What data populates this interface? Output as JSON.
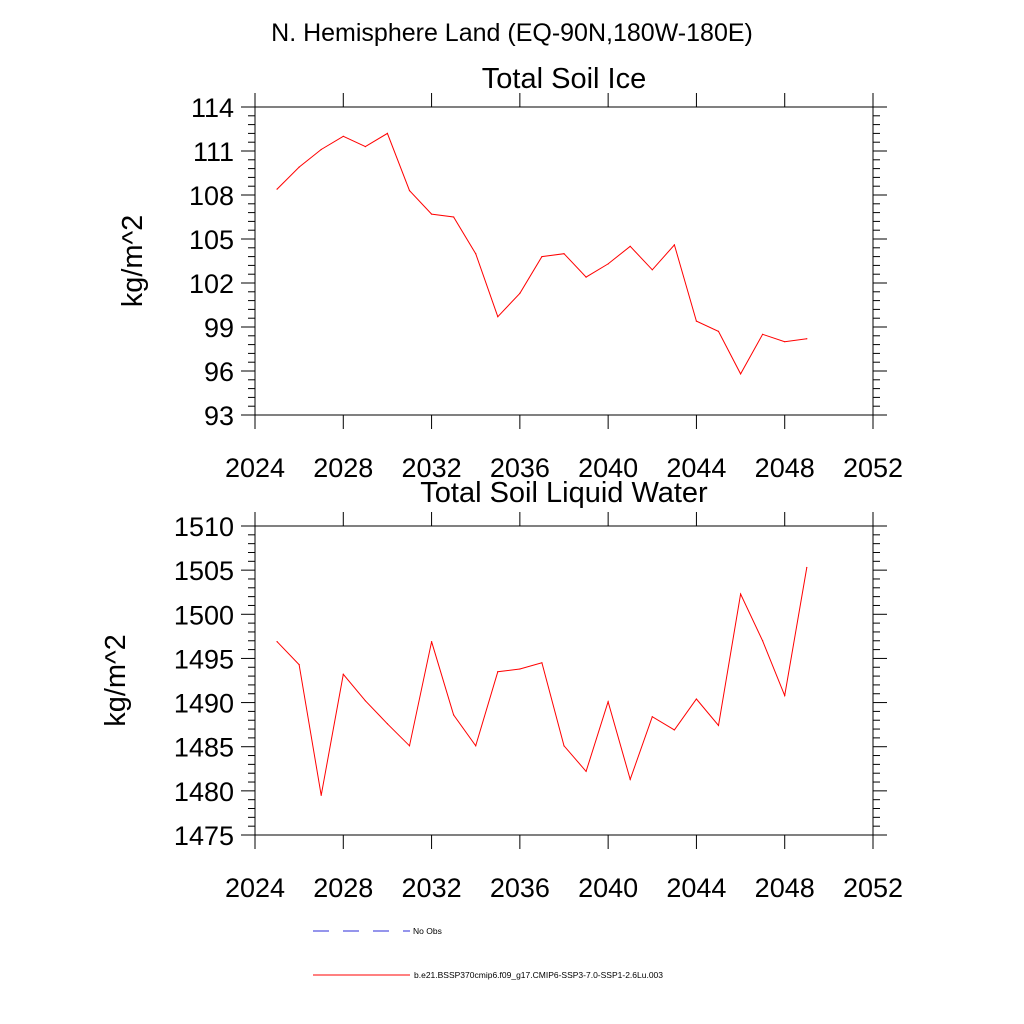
{
  "header": {
    "title": "N. Hemisphere Land (EQ-90N,180W-180E)"
  },
  "legend": {
    "position": "bottom",
    "items": [
      {
        "label": "No Obs",
        "color": "#2b2bd9",
        "dash": "dashed"
      },
      {
        "label": "b.e21.BSSP370cmip6.f09_g17.CMIP6-SSP3-7.0-SSP1-2.6Lu.003",
        "color": "#ff0000",
        "dash": "solid"
      }
    ]
  },
  "chart_data": [
    {
      "type": "line",
      "title": "Total Soil Ice",
      "xlabel": "",
      "ylabel": "kg/m^2",
      "xlim": [
        2024,
        2052
      ],
      "ylim": [
        93,
        114
      ],
      "xticks": [
        2024,
        2028,
        2032,
        2036,
        2040,
        2044,
        2048,
        2052
      ],
      "yticks": [
        93,
        96,
        99,
        102,
        105,
        108,
        111,
        114
      ],
      "grid": false,
      "series": [
        {
          "name": "b.e21.BSSP370cmip6.f09_g17.CMIP6-SSP3-7.0-SSP1-2.6Lu.003",
          "color": "#ff0000",
          "x": [
            2025,
            2026,
            2027,
            2028,
            2029,
            2030,
            2031,
            2032,
            2033,
            2034,
            2035,
            2036,
            2037,
            2038,
            2039,
            2040,
            2041,
            2042,
            2043,
            2044,
            2045,
            2046,
            2047,
            2048,
            2049
          ],
          "y": [
            108.4,
            109.9,
            111.1,
            112.0,
            111.3,
            112.2,
            108.3,
            106.7,
            106.5,
            104.0,
            99.7,
            101.3,
            103.8,
            104.0,
            102.4,
            103.3,
            104.5,
            102.9,
            104.6,
            99.4,
            98.7,
            95.8,
            98.5,
            98.0,
            98.2
          ]
        }
      ]
    },
    {
      "type": "line",
      "title": "Total Soil Liquid Water",
      "xlabel": "",
      "ylabel": "kg/m^2",
      "xlim": [
        2024,
        2052
      ],
      "ylim": [
        1475,
        1510
      ],
      "xticks": [
        2024,
        2028,
        2032,
        2036,
        2040,
        2044,
        2048,
        2052
      ],
      "yticks": [
        1475,
        1480,
        1485,
        1490,
        1495,
        1500,
        1505,
        1510
      ],
      "grid": false,
      "series": [
        {
          "name": "b.e21.BSSP370cmip6.f09_g17.CMIP6-SSP3-7.0-SSP1-2.6Lu.003",
          "color": "#ff0000",
          "x": [
            2025,
            2026,
            2027,
            2028,
            2029,
            2030,
            2031,
            2032,
            2033,
            2034,
            2035,
            2036,
            2037,
            2038,
            2039,
            2040,
            2041,
            2042,
            2043,
            2044,
            2045,
            2046,
            2047,
            2048,
            2049
          ],
          "y": [
            1496.9,
            1494.3,
            1479.5,
            1493.2,
            1490.2,
            1487.6,
            1485.1,
            1496.9,
            1488.6,
            1485.1,
            1493.5,
            1493.8,
            1494.5,
            1485.1,
            1482.2,
            1490.1,
            1481.3,
            1488.4,
            1486.9,
            1490.4,
            1487.4,
            1502.3,
            1497.0,
            1490.8,
            1505.3
          ]
        }
      ]
    }
  ]
}
